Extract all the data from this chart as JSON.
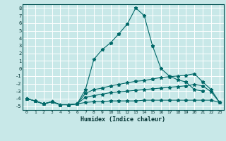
{
  "title": "",
  "xlabel": "Humidex (Indice chaleur)",
  "background_color": "#c8e8e8",
  "grid_color": "#ffffff",
  "line_color": "#006868",
  "xlim": [
    -0.5,
    23.5
  ],
  "ylim": [
    -5.5,
    8.5
  ],
  "xtick_labels": [
    "0",
    "1",
    "2",
    "3",
    "4",
    "5",
    "6",
    "7",
    "8",
    "9",
    "10",
    "11",
    "12",
    "13",
    "14",
    "15",
    "16",
    "17",
    "18",
    "19",
    "20",
    "21",
    "22",
    "23"
  ],
  "xtick_vals": [
    0,
    1,
    2,
    3,
    4,
    5,
    6,
    7,
    8,
    9,
    10,
    11,
    12,
    13,
    14,
    15,
    16,
    17,
    18,
    19,
    20,
    21,
    22,
    23
  ],
  "ytick_vals": [
    -5,
    -4,
    -3,
    -2,
    -1,
    0,
    1,
    2,
    3,
    4,
    5,
    6,
    7,
    8
  ],
  "series1_x": [
    0,
    1,
    2,
    3,
    4,
    5,
    6,
    7,
    8,
    9,
    10,
    11,
    12,
    13,
    14,
    15,
    16,
    17,
    18,
    19,
    20,
    21
  ],
  "series1_y": [
    -4,
    -4.3,
    -4.7,
    -4.4,
    -4.8,
    -4.8,
    -4.7,
    -2.8,
    1.2,
    2.5,
    3.4,
    4.6,
    5.9,
    8.0,
    7.0,
    3.0,
    0.0,
    -1.0,
    -1.5,
    -1.8,
    -2.8,
    -3.0
  ],
  "series2_x": [
    0,
    1,
    2,
    3,
    4,
    5,
    6,
    7,
    8,
    9,
    10,
    11,
    12,
    13,
    14,
    15,
    16,
    17,
    18,
    19,
    20,
    21,
    22,
    23
  ],
  "series2_y": [
    -4,
    -4.3,
    -4.7,
    -4.4,
    -4.8,
    -4.8,
    -4.7,
    -3.3,
    -2.8,
    -2.6,
    -2.3,
    -2.1,
    -1.9,
    -1.7,
    -1.6,
    -1.4,
    -1.2,
    -1.1,
    -1.0,
    -0.9,
    -0.7,
    -1.8,
    -2.8,
    -4.5
  ],
  "series3_x": [
    0,
    1,
    2,
    3,
    4,
    5,
    6,
    7,
    8,
    9,
    10,
    11,
    12,
    13,
    14,
    15,
    16,
    17,
    18,
    19,
    20,
    21,
    22,
    23
  ],
  "series3_y": [
    -4,
    -4.3,
    -4.7,
    -4.4,
    -4.8,
    -4.8,
    -4.7,
    -3.8,
    -3.6,
    -3.4,
    -3.2,
    -3.1,
    -3.0,
    -2.9,
    -2.8,
    -2.7,
    -2.6,
    -2.5,
    -2.4,
    -2.3,
    -2.1,
    -2.3,
    -3.1,
    -4.5
  ],
  "series4_x": [
    0,
    1,
    2,
    3,
    4,
    5,
    6,
    7,
    8,
    9,
    10,
    11,
    12,
    13,
    14,
    15,
    16,
    17,
    18,
    19,
    20,
    21,
    22,
    23
  ],
  "series4_y": [
    -4,
    -4.3,
    -4.7,
    -4.4,
    -4.8,
    -4.8,
    -4.7,
    -4.5,
    -4.4,
    -4.4,
    -4.3,
    -4.3,
    -4.3,
    -4.3,
    -4.2,
    -4.2,
    -4.2,
    -4.2,
    -4.2,
    -4.2,
    -4.2,
    -4.2,
    -4.2,
    -4.5
  ]
}
